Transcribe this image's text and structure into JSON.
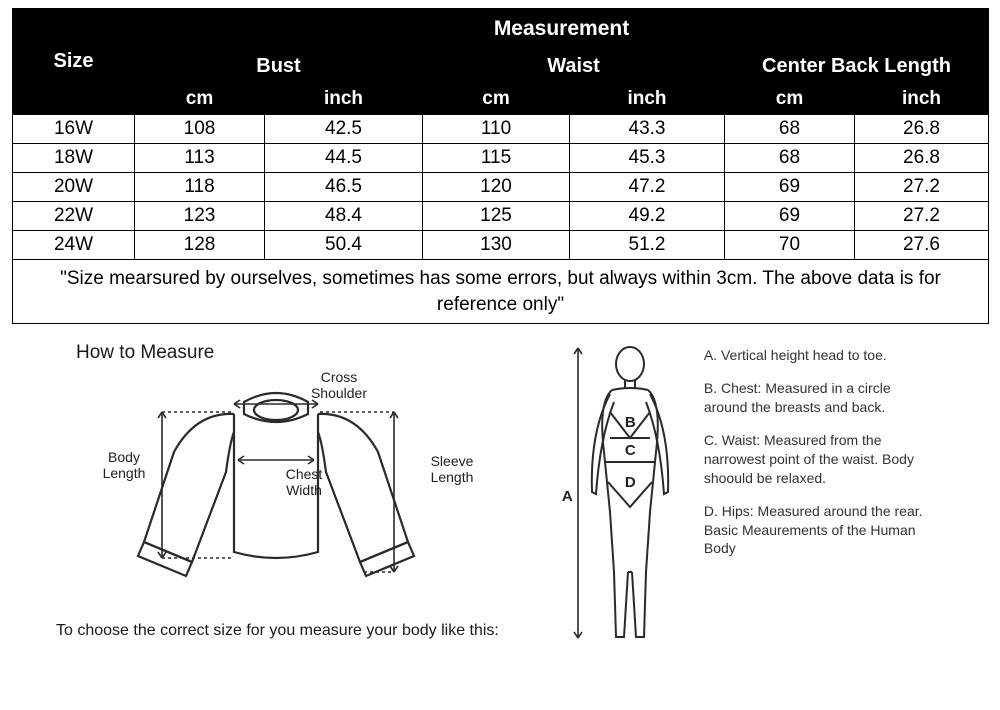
{
  "table": {
    "header_size": "Size",
    "header_measurement": "Measurement",
    "groups": [
      "Bust",
      "Waist",
      "Center Back Length"
    ],
    "units": [
      "cm",
      "inch",
      "cm",
      "inch",
      "cm",
      "inch"
    ],
    "rows": [
      {
        "size": "16W",
        "cells": [
          "108",
          "42.5",
          "110",
          "43.3",
          "68",
          "26.8"
        ]
      },
      {
        "size": "18W",
        "cells": [
          "113",
          "44.5",
          "115",
          "45.3",
          "68",
          "26.8"
        ]
      },
      {
        "size": "20W",
        "cells": [
          "118",
          "46.5",
          "120",
          "47.2",
          "69",
          "27.2"
        ]
      },
      {
        "size": "22W",
        "cells": [
          "123",
          "48.4",
          "125",
          "49.2",
          "69",
          "27.2"
        ]
      },
      {
        "size": "24W",
        "cells": [
          "128",
          "50.4",
          "130",
          "51.2",
          "70",
          "27.6"
        ]
      }
    ],
    "note": "\"Size mearsured by ourselves, sometimes has some errors, but always within 3cm. The above data is for reference only\""
  },
  "diagram": {
    "title": "How to Measure",
    "cross_shoulder": "Cross Shoulder",
    "body_length": "Body Length",
    "chest_width": "Chest Width",
    "sleeve_length": "Sleeve Length",
    "choose_text": "To choose the correct size for you measure your body like this:",
    "marks": {
      "A": "A",
      "B": "B",
      "C": "C",
      "D": "D"
    },
    "defs": {
      "a": "A. Vertical height head to toe.",
      "b": "B. Chest: Measured in a circle around the breasts and back.",
      "c": "C. Waist: Measured from the narrowest point of the waist. Body shoould be relaxed.",
      "d": "D. Hips: Measured around the rear. Basic Meaurements of the Human Body"
    }
  },
  "style": {
    "header_bg": "#000000",
    "header_fg": "#ffffff",
    "cell_bg": "#ffffff",
    "cell_fg": "#000000",
    "border": "#000000",
    "diagram_stroke": "#2a2a2a"
  }
}
